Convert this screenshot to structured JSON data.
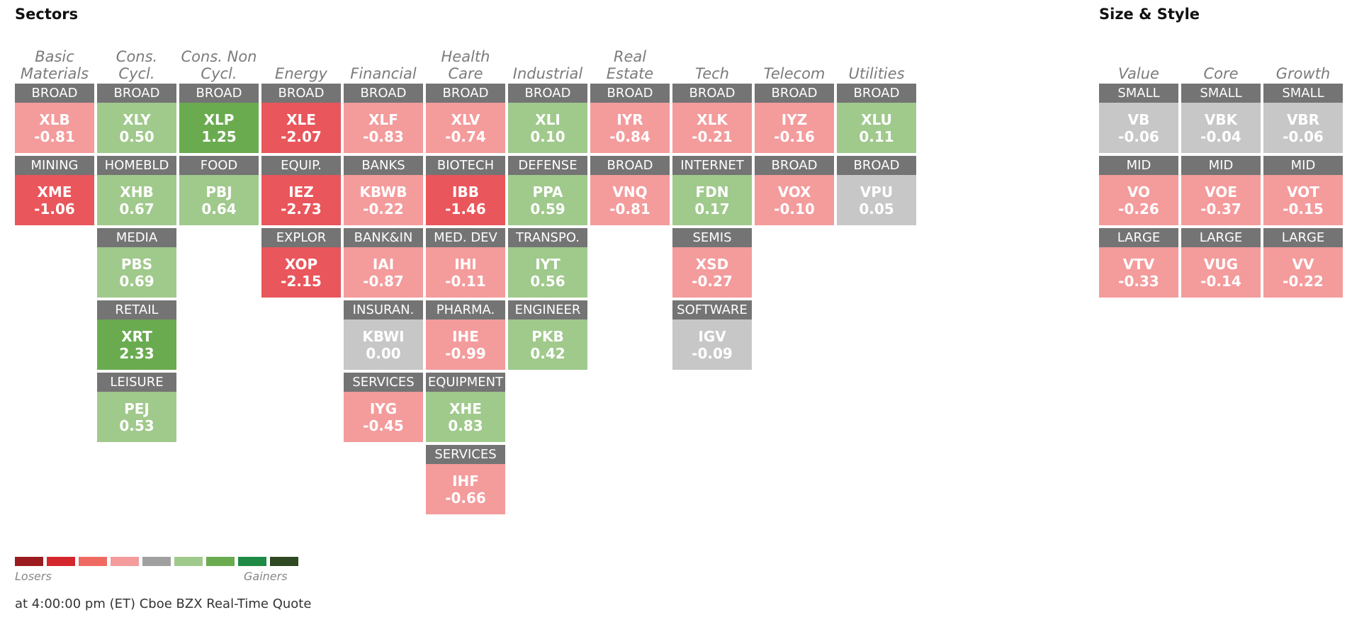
{
  "sectors": {
    "title": "Sectors",
    "columns": [
      {
        "name": "Basic\nMaterials",
        "tiles": [
          {
            "label": "BROAD",
            "ticker": "XLB",
            "change": "-0.81",
            "color": "#f49b9c"
          },
          {
            "label": "MINING",
            "ticker": "XME",
            "change": "-1.06",
            "color": "#e9565b"
          }
        ]
      },
      {
        "name": "Cons. Cycl.",
        "tiles": [
          {
            "label": "BROAD",
            "ticker": "XLY",
            "change": "0.50",
            "color": "#a0c98c"
          },
          {
            "label": "HOMEBLD",
            "ticker": "XHB",
            "change": "0.67",
            "color": "#a0c98c"
          },
          {
            "label": "MEDIA",
            "ticker": "PBS",
            "change": "0.69",
            "color": "#a0c98c"
          },
          {
            "label": "RETAIL",
            "ticker": "XRT",
            "change": "2.33",
            "color": "#6aab50"
          },
          {
            "label": "LEISURE",
            "ticker": "PEJ",
            "change": "0.53",
            "color": "#a0c98c"
          }
        ]
      },
      {
        "name": "Cons. Non\nCycl.",
        "tiles": [
          {
            "label": "BROAD",
            "ticker": "XLP",
            "change": "1.25",
            "color": "#6aab50"
          },
          {
            "label": "FOOD",
            "ticker": "PBJ",
            "change": "0.64",
            "color": "#a0c98c"
          }
        ]
      },
      {
        "name": "Energy",
        "tiles": [
          {
            "label": "BROAD",
            "ticker": "XLE",
            "change": "-2.07",
            "color": "#e9565b"
          },
          {
            "label": "EQUIP.",
            "ticker": "IEZ",
            "change": "-2.73",
            "color": "#e9565b"
          },
          {
            "label": "EXPLOR",
            "ticker": "XOP",
            "change": "-2.15",
            "color": "#e9565b"
          }
        ]
      },
      {
        "name": "Financial",
        "tiles": [
          {
            "label": "BROAD",
            "ticker": "XLF",
            "change": "-0.83",
            "color": "#f49b9c"
          },
          {
            "label": "BANKS",
            "ticker": "KBWB",
            "change": "-0.22",
            "color": "#f49b9c"
          },
          {
            "label": "BANK&IN",
            "ticker": "IAI",
            "change": "-0.87",
            "color": "#f49b9c"
          },
          {
            "label": "INSURAN.",
            "ticker": "KBWI",
            "change": "0.00",
            "color": "#c7c7c7"
          },
          {
            "label": "SERVICES",
            "ticker": "IYG",
            "change": "-0.45",
            "color": "#f49b9c"
          }
        ]
      },
      {
        "name": "Health\nCare",
        "tiles": [
          {
            "label": "BROAD",
            "ticker": "XLV",
            "change": "-0.74",
            "color": "#f49b9c"
          },
          {
            "label": "BIOTECH",
            "ticker": "IBB",
            "change": "-1.46",
            "color": "#e9565b"
          },
          {
            "label": "MED. DEV",
            "ticker": "IHI",
            "change": "-0.11",
            "color": "#f49b9c"
          },
          {
            "label": "PHARMA.",
            "ticker": "IHE",
            "change": "-0.99",
            "color": "#f49b9c"
          },
          {
            "label": "EQUIPMENT",
            "ticker": "XHE",
            "change": "0.83",
            "color": "#a0c98c"
          },
          {
            "label": "SERVICES",
            "ticker": "IHF",
            "change": "-0.66",
            "color": "#f49b9c"
          }
        ]
      },
      {
        "name": "Industrial",
        "tiles": [
          {
            "label": "BROAD",
            "ticker": "XLI",
            "change": "0.10",
            "color": "#a0c98c"
          },
          {
            "label": "DEFENSE",
            "ticker": "PPA",
            "change": "0.59",
            "color": "#a0c98c"
          },
          {
            "label": "TRANSPO.",
            "ticker": "IYT",
            "change": "0.56",
            "color": "#a0c98c"
          },
          {
            "label": "ENGINEER",
            "ticker": "PKB",
            "change": "0.42",
            "color": "#a0c98c"
          }
        ]
      },
      {
        "name": "Real Estate",
        "tiles": [
          {
            "label": "BROAD",
            "ticker": "IYR",
            "change": "-0.84",
            "color": "#f49b9c"
          },
          {
            "label": "BROAD",
            "ticker": "VNQ",
            "change": "-0.81",
            "color": "#f49b9c"
          }
        ]
      },
      {
        "name": "Tech",
        "tiles": [
          {
            "label": "BROAD",
            "ticker": "XLK",
            "change": "-0.21",
            "color": "#f49b9c"
          },
          {
            "label": "INTERNET",
            "ticker": "FDN",
            "change": "0.17",
            "color": "#a0c98c"
          },
          {
            "label": "SEMIS",
            "ticker": "XSD",
            "change": "-0.27",
            "color": "#f49b9c"
          },
          {
            "label": "SOFTWARE",
            "ticker": "IGV",
            "change": "-0.09",
            "color": "#c7c7c7"
          }
        ]
      },
      {
        "name": "Telecom",
        "tiles": [
          {
            "label": "BROAD",
            "ticker": "IYZ",
            "change": "-0.16",
            "color": "#f49b9c"
          },
          {
            "label": "BROAD",
            "ticker": "VOX",
            "change": "-0.10",
            "color": "#f49b9c"
          }
        ]
      },
      {
        "name": "Utilities",
        "tiles": [
          {
            "label": "BROAD",
            "ticker": "XLU",
            "change": "0.11",
            "color": "#a0c98c"
          },
          {
            "label": "BROAD",
            "ticker": "VPU",
            "change": "0.05",
            "color": "#c7c7c7"
          }
        ]
      }
    ]
  },
  "size_style": {
    "title": "Size & Style",
    "columns": [
      {
        "name": "Value",
        "tiles": [
          {
            "label": "SMALL",
            "ticker": "VB",
            "change": "-0.06",
            "color": "#c7c7c7"
          },
          {
            "label": "MID",
            "ticker": "VO",
            "change": "-0.26",
            "color": "#f49b9c"
          },
          {
            "label": "LARGE",
            "ticker": "VTV",
            "change": "-0.33",
            "color": "#f49b9c"
          }
        ]
      },
      {
        "name": "Core",
        "tiles": [
          {
            "label": "SMALL",
            "ticker": "VBK",
            "change": "-0.04",
            "color": "#c7c7c7"
          },
          {
            "label": "MID",
            "ticker": "VOE",
            "change": "-0.37",
            "color": "#f49b9c"
          },
          {
            "label": "LARGE",
            "ticker": "VUG",
            "change": "-0.14",
            "color": "#f49b9c"
          }
        ]
      },
      {
        "name": "Growth",
        "tiles": [
          {
            "label": "SMALL",
            "ticker": "VBR",
            "change": "-0.06",
            "color": "#c7c7c7"
          },
          {
            "label": "MID",
            "ticker": "VOT",
            "change": "-0.15",
            "color": "#f49b9c"
          },
          {
            "label": "LARGE",
            "ticker": "VV",
            "change": "-0.22",
            "color": "#f49b9c"
          }
        ]
      }
    ]
  },
  "legend": {
    "colors": [
      "#9b1c20",
      "#d4262d",
      "#ef6b62",
      "#f49b9c",
      "#a0a0a0",
      "#a0c98c",
      "#6aab50",
      "#1e8a45",
      "#2f4a22"
    ],
    "losers_label": "Losers",
    "gainers_label": "Gainers"
  },
  "footer": {
    "text": "at 4:00:00 pm (ET) Cboe BZX Real-Time Quote"
  }
}
